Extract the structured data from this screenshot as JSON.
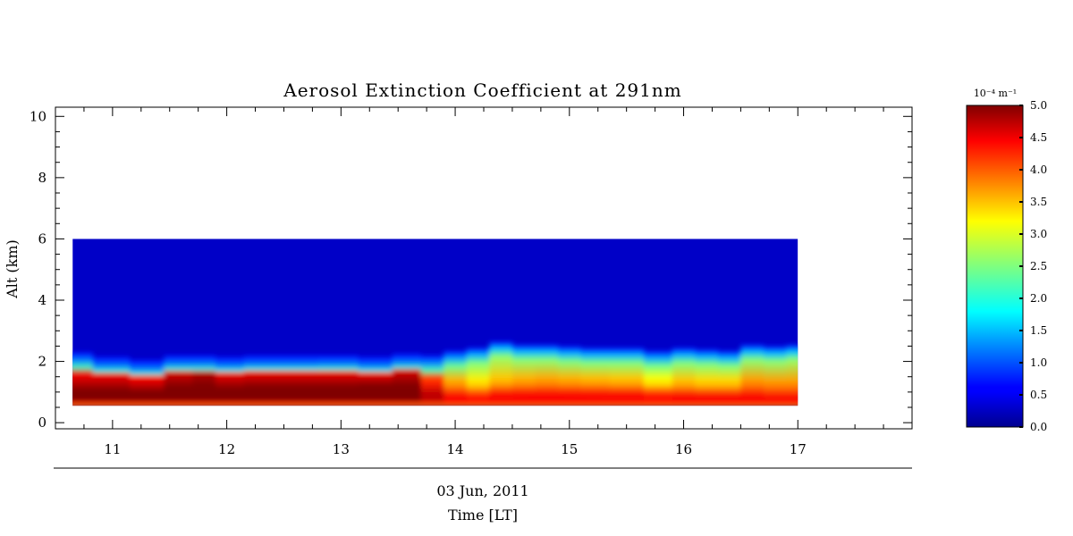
{
  "chart_data": {
    "type": "heatmap",
    "title": "Aerosol Extinction Coefficient at 291nm",
    "ylabel": "Alt (km)",
    "xlabel_date": "03 Jun, 2011",
    "xlabel": "Time [LT]",
    "xlim": [
      10.5,
      18.0
    ],
    "ylim": [
      -0.2,
      10.3
    ],
    "x_ticks": [
      "11",
      "12",
      "13",
      "14",
      "15",
      "16",
      "17"
    ],
    "x_tick_values": [
      11,
      12,
      13,
      14,
      15,
      16,
      17
    ],
    "y_ticks": [
      "0",
      "2",
      "4",
      "6",
      "8",
      "10"
    ],
    "y_tick_values": [
      0,
      2,
      4,
      6,
      8,
      10
    ],
    "data_extent": {
      "x": [
        10.65,
        17.0
      ],
      "y": [
        0.55,
        6.0
      ]
    },
    "colorbar": {
      "unit": "10⁻⁴ m⁻¹",
      "range": [
        0.0,
        5.0
      ],
      "tick_labels": [
        "0.0",
        "0.5",
        "1.0",
        "1.5",
        "2.0",
        "2.5",
        "3.0",
        "3.5",
        "4.0",
        "4.5",
        "5.0"
      ],
      "tick_values": [
        0.0,
        0.5,
        1.0,
        1.5,
        2.0,
        2.5,
        3.0,
        3.5,
        4.0,
        4.5,
        5.0
      ],
      "colormap": "jet"
    },
    "series": [
      {
        "time": [
          10.65,
          11.0,
          11.3,
          11.6,
          11.8,
          12.0,
          12.3,
          12.6,
          13.0,
          13.3,
          13.6,
          13.8,
          14.0,
          14.2,
          14.4,
          14.6,
          14.8,
          15.0,
          15.2,
          15.5,
          15.8,
          16.0,
          16.2,
          16.4,
          16.6,
          16.8,
          17.0
        ],
        "layer_top_km": [
          1.95,
          1.8,
          1.7,
          1.85,
          1.85,
          1.8,
          1.85,
          1.85,
          1.85,
          1.8,
          1.9,
          1.85,
          2.0,
          2.1,
          2.3,
          2.2,
          2.2,
          2.15,
          2.1,
          2.1,
          2.0,
          2.1,
          2.05,
          2.0,
          2.2,
          2.15,
          2.2
        ],
        "core_top_km": [
          1.4,
          1.4,
          1.35,
          1.5,
          1.55,
          1.45,
          1.5,
          1.5,
          1.5,
          1.55,
          1.55,
          1.3,
          1.2,
          1.2,
          1.25,
          1.25,
          1.25,
          1.25,
          1.25,
          1.25,
          1.25,
          1.2,
          1.2,
          1.2,
          1.2,
          1.15,
          1.15
        ],
        "near_surface_value": [
          5.0,
          5.0,
          5.0,
          5.0,
          5.0,
          5.0,
          5.0,
          5.0,
          5.0,
          5.0,
          5.0,
          4.7,
          4.4,
          4.3,
          4.4,
          4.4,
          4.4,
          4.4,
          4.4,
          4.4,
          4.3,
          4.4,
          4.4,
          4.4,
          4.4,
          4.4,
          4.4
        ],
        "layer_value": [
          4.6,
          4.6,
          4.5,
          4.7,
          4.8,
          4.6,
          4.6,
          4.6,
          4.6,
          4.5,
          4.7,
          4.2,
          3.7,
          3.4,
          3.6,
          3.7,
          3.75,
          3.7,
          3.65,
          3.6,
          3.3,
          3.6,
          3.5,
          3.5,
          3.8,
          3.8,
          3.8
        ],
        "top_value": [
          1.5,
          1.4,
          1.4,
          1.45,
          1.45,
          1.4,
          1.4,
          1.4,
          1.45,
          1.4,
          1.45,
          1.55,
          1.7,
          1.8,
          1.9,
          1.85,
          1.85,
          1.8,
          1.8,
          1.8,
          1.75,
          1.8,
          1.8,
          1.8,
          1.85,
          1.85,
          1.9
        ],
        "free_troposphere_value": 0.35
      }
    ],
    "grid": false
  }
}
